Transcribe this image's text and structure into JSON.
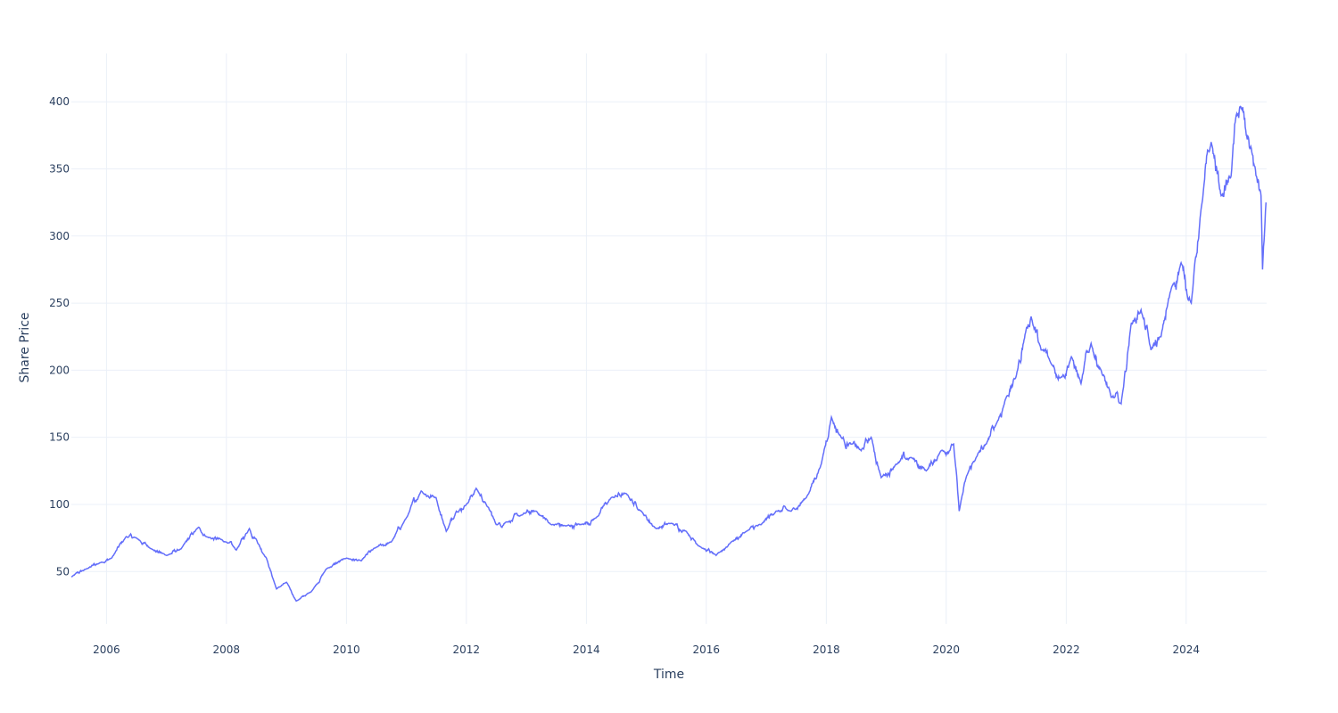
{
  "chart_data": {
    "type": "line",
    "title": "",
    "xlabel": "Time",
    "ylabel": "Share Price",
    "xlim": [
      "2005-06-01",
      "2025-05-05"
    ],
    "ylim": [
      11,
      436
    ],
    "grid": true,
    "legend": "none",
    "line_color": "#636efa",
    "grid_color": "#ebf0f8",
    "text_color": "#2a3f5f",
    "x_ticks": [
      "2006",
      "2008",
      "2010",
      "2012",
      "2014",
      "2016",
      "2018",
      "2020",
      "2022",
      "2024"
    ],
    "y_ticks": [
      "50",
      "100",
      "150",
      "200",
      "250",
      "300",
      "350",
      "400"
    ],
    "series": [
      {
        "x": [
          "2005-06-01",
          "2005-09-01",
          "2005-12-01",
          "2006-02-01",
          "2006-05-01",
          "2006-07-01",
          "2006-10-01",
          "2007-01-01",
          "2007-04-01",
          "2007-07-15",
          "2007-09-01",
          "2008-01-01",
          "2008-03-01",
          "2008-05-20",
          "2008-07-01",
          "2008-09-01",
          "2008-11-01",
          "2009-01-01",
          "2009-03-01",
          "2009-06-01",
          "2009-09-01",
          "2010-01-01",
          "2010-04-01",
          "2010-07-01",
          "2010-10-01",
          "2011-01-01",
          "2011-04-01",
          "2011-07-01",
          "2011-09-01",
          "2011-11-01",
          "2012-01-01",
          "2012-03-01",
          "2012-05-01",
          "2012-07-01",
          "2012-09-01",
          "2012-12-01",
          "2013-03-01",
          "2013-06-01",
          "2013-09-01",
          "2013-12-01",
          "2014-03-01",
          "2014-06-01",
          "2014-09-01",
          "2014-12-01",
          "2015-03-01",
          "2015-06-01",
          "2015-09-01",
          "2015-12-01",
          "2016-03-01",
          "2016-06-01",
          "2016-09-01",
          "2016-12-01",
          "2017-03-01",
          "2017-06-01",
          "2017-09-01",
          "2017-12-01",
          "2018-02-01",
          "2018-04-01",
          "2018-06-01",
          "2018-08-01",
          "2018-10-01",
          "2018-12-01",
          "2019-03-01",
          "2019-06-01",
          "2019-09-01",
          "2019-12-01",
          "2020-02-15",
          "2020-03-20",
          "2020-05-01",
          "2020-07-01",
          "2020-09-01",
          "2020-11-01",
          "2021-01-01",
          "2021-03-01",
          "2021-05-01",
          "2021-06-01",
          "2021-08-01",
          "2021-10-01",
          "2021-12-01",
          "2022-02-01",
          "2022-04-01",
          "2022-06-01",
          "2022-08-01",
          "2022-10-01",
          "2022-12-01",
          "2023-02-01",
          "2023-04-01",
          "2023-06-01",
          "2023-08-01",
          "2023-10-01",
          "2023-12-01",
          "2024-02-01",
          "2024-04-01",
          "2024-06-01",
          "2024-08-01",
          "2024-10-01",
          "2024-11-01",
          "2024-12-01",
          "2025-01-01",
          "2025-02-01",
          "2025-03-01",
          "2025-04-01",
          "2025-04-10",
          "2025-05-01"
        ],
        "y": [
          46,
          52,
          57,
          60,
          76,
          75,
          67,
          62,
          67,
          83,
          76,
          72,
          66,
          82,
          74,
          60,
          37,
          42,
          28,
          35,
          52,
          60,
          58,
          68,
          72,
          90,
          110,
          105,
          80,
          95,
          100,
          112,
          100,
          85,
          87,
          92,
          95,
          85,
          84,
          85,
          90,
          105,
          108,
          95,
          82,
          86,
          80,
          68,
          62,
          72,
          80,
          85,
          95,
          95,
          105,
          130,
          165,
          150,
          145,
          140,
          150,
          120,
          130,
          135,
          125,
          140,
          145,
          95,
          120,
          135,
          145,
          160,
          180,
          195,
          230,
          240,
          215,
          205,
          195,
          210,
          190,
          220,
          200,
          180,
          175,
          235,
          245,
          215,
          225,
          260,
          280,
          250,
          320,
          370,
          330,
          345,
          390,
          395,
          375,
          365,
          345,
          330,
          275,
          325
        ]
      }
    ]
  }
}
